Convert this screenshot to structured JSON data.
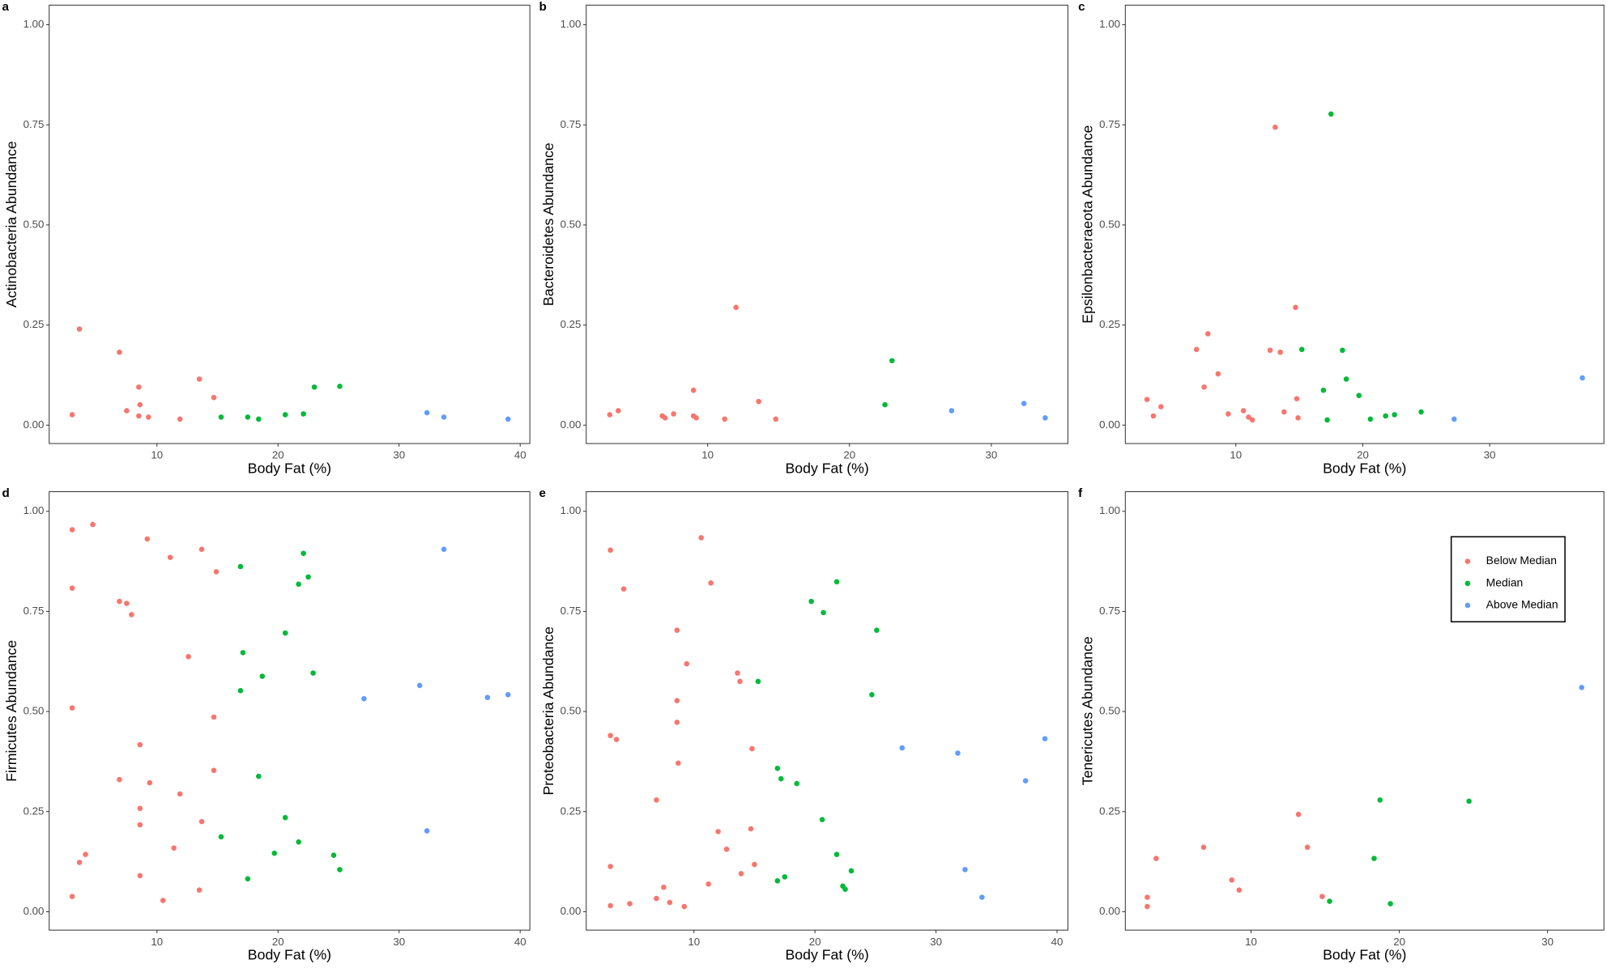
{
  "chart_data": [
    {
      "type": "scatter",
      "panel": "a",
      "xlabel": "Body Fat (%)",
      "ylabel": "Actinobacteria Abundance",
      "xlim": [
        1.1,
        40.8
      ],
      "ylim": [
        -0.046,
        1.049
      ],
      "xticks": [
        10,
        20,
        30,
        40
      ],
      "yticks": [
        {
          "value": 0,
          "label": "0.00"
        },
        {
          "value": 0.25,
          "label": "0.25"
        },
        {
          "value": 0.5,
          "label": "0.50"
        },
        {
          "value": 0.75,
          "label": "0.75"
        },
        {
          "value": 1,
          "label": "1.00"
        }
      ],
      "series": [
        {
          "color": "#F8766D",
          "x": [
            3.0,
            3.6,
            6.9,
            7.5,
            8.5,
            8.6,
            8.5,
            9.3,
            11.9,
            13.5,
            14.7
          ],
          "y": [
            0.026,
            0.24,
            0.182,
            0.036,
            0.095,
            0.051,
            0.023,
            0.02,
            0.015,
            0.115,
            0.069
          ]
        },
        {
          "color": "#00BA38",
          "x": [
            15.3,
            17.5,
            18.4,
            20.6,
            22.1,
            23.0,
            25.1
          ],
          "y": [
            0.02,
            0.02,
            0.015,
            0.026,
            0.028,
            0.095,
            0.097
          ]
        },
        {
          "color": "#619CFF",
          "x": [
            32.3,
            33.7,
            39.0
          ],
          "y": [
            0.031,
            0.02,
            0.015
          ]
        }
      ]
    },
    {
      "type": "scatter",
      "panel": "b",
      "xlabel": "Body Fat (%)",
      "ylabel": "Bacteroidetes Abundance",
      "xlim": [
        1.44,
        35.4
      ],
      "ylim": [
        -0.046,
        1.049
      ],
      "xticks": [
        10,
        20,
        30
      ],
      "yticks": [
        {
          "value": 0,
          "label": "0.00"
        },
        {
          "value": 0.25,
          "label": "0.25"
        },
        {
          "value": 0.5,
          "label": "0.50"
        },
        {
          "value": 0.75,
          "label": "0.75"
        },
        {
          "value": 1,
          "label": "1.00"
        }
      ],
      "series": [
        {
          "color": "#F8766D",
          "x": [
            3.1,
            3.7,
            6.8,
            7.0,
            7.6,
            9.0,
            9.0,
            9.2,
            11.2,
            12.0,
            13.6,
            14.8
          ],
          "y": [
            0.026,
            0.036,
            0.023,
            0.018,
            0.028,
            0.087,
            0.023,
            0.018,
            0.015,
            0.294,
            0.059,
            0.015
          ]
        },
        {
          "color": "#00BA38",
          "x": [
            22.5,
            23.0
          ],
          "y": [
            0.051,
            0.161
          ]
        },
        {
          "color": "#619CFF",
          "x": [
            27.2,
            32.3,
            33.8
          ],
          "y": [
            0.036,
            0.054,
            0.018
          ]
        }
      ]
    },
    {
      "type": "scatter",
      "panel": "c",
      "xlabel": "Body Fat (%)",
      "ylabel": "Epsilonbacteraeota Abundance",
      "xlim": [
        1.29,
        39.0
      ],
      "ylim": [
        -0.046,
        1.049
      ],
      "xticks": [
        10,
        20,
        30
      ],
      "yticks": [
        {
          "value": 0,
          "label": "0.00"
        },
        {
          "value": 0.25,
          "label": "0.25"
        },
        {
          "value": 0.5,
          "label": "0.50"
        },
        {
          "value": 0.75,
          "label": "0.75"
        },
        {
          "value": 1,
          "label": "1.00"
        }
      ],
      "series": [
        {
          "color": "#F8766D",
          "x": [
            3.0,
            3.5,
            4.1,
            6.9,
            7.5,
            7.8,
            8.6,
            9.4,
            10.6,
            11.0,
            11.3,
            12.7,
            13.1,
            13.5,
            13.8,
            14.7,
            14.8,
            14.9
          ],
          "y": [
            0.064,
            0.023,
            0.046,
            0.189,
            0.095,
            0.228,
            0.128,
            0.028,
            0.036,
            0.02,
            0.013,
            0.187,
            0.744,
            0.182,
            0.033,
            0.294,
            0.066,
            0.018
          ]
        },
        {
          "color": "#00BA38",
          "x": [
            15.2,
            16.9,
            17.2,
            17.5,
            18.4,
            18.7,
            19.7,
            20.6,
            21.8,
            22.5,
            24.6
          ],
          "y": [
            0.189,
            0.087,
            0.013,
            0.777,
            0.187,
            0.115,
            0.074,
            0.015,
            0.023,
            0.026,
            0.033
          ]
        },
        {
          "color": "#619CFF",
          "x": [
            27.2,
            37.3
          ],
          "y": [
            0.015,
            0.118
          ]
        }
      ]
    },
    {
      "type": "scatter",
      "panel": "d",
      "xlabel": "Body Fat (%)",
      "ylabel": "Firmicutes Abundance",
      "xlim": [
        1.1,
        40.8
      ],
      "ylim": [
        -0.046,
        1.049
      ],
      "xticks": [
        10,
        20,
        30,
        40
      ],
      "yticks": [
        {
          "value": 0,
          "label": "0.00"
        },
        {
          "value": 0.25,
          "label": "0.25"
        },
        {
          "value": 0.5,
          "label": "0.50"
        },
        {
          "value": 0.75,
          "label": "0.75"
        },
        {
          "value": 1,
          "label": "1.00"
        }
      ],
      "series": [
        {
          "color": "#F8766D",
          "x": [
            3.0,
            3.0,
            3.0,
            3.0,
            3.6,
            4.1,
            4.7,
            6.9,
            6.9,
            7.5,
            7.9,
            8.6,
            8.6,
            8.6,
            8.6,
            9.2,
            9.4,
            10.5,
            11.1,
            11.4,
            11.9,
            12.6,
            13.5,
            13.7,
            13.7,
            14.7,
            14.7,
            14.9
          ],
          "y": [
            0.954,
            0.808,
            0.509,
            0.038,
            0.123,
            0.143,
            0.967,
            0.775,
            0.33,
            0.77,
            0.742,
            0.417,
            0.258,
            0.217,
            0.09,
            0.931,
            0.322,
            0.028,
            0.885,
            0.159,
            0.294,
            0.637,
            0.054,
            0.905,
            0.225,
            0.486,
            0.353,
            0.849
          ]
        },
        {
          "color": "#00BA38",
          "x": [
            15.3,
            16.9,
            17.1,
            16.9,
            17.5,
            18.4,
            18.7,
            19.7,
            20.6,
            20.6,
            21.7,
            21.7,
            22.1,
            22.5,
            22.9,
            24.6,
            25.1
          ],
          "y": [
            0.187,
            0.862,
            0.647,
            0.552,
            0.082,
            0.338,
            0.588,
            0.146,
            0.235,
            0.696,
            0.818,
            0.174,
            0.895,
            0.836,
            0.596,
            0.141,
            0.105
          ]
        },
        {
          "color": "#619CFF",
          "x": [
            27.1,
            31.7,
            32.3,
            33.7,
            37.3,
            39.0
          ],
          "y": [
            0.532,
            0.565,
            0.202,
            0.905,
            0.535,
            0.542
          ]
        }
      ]
    },
    {
      "type": "scatter",
      "panel": "e",
      "xlabel": "Body Fat (%)",
      "ylabel": "Proteobacteria Abundance",
      "xlim": [
        1.1,
        40.9
      ],
      "ylim": [
        -0.046,
        1.049
      ],
      "xticks": [
        10,
        20,
        30,
        40
      ],
      "yticks": [
        {
          "value": 0,
          "label": "0.00"
        },
        {
          "value": 0.25,
          "label": "0.25"
        },
        {
          "value": 0.5,
          "label": "0.50"
        },
        {
          "value": 0.75,
          "label": "0.75"
        },
        {
          "value": 1,
          "label": "1.00"
        }
      ],
      "series": [
        {
          "color": "#F8766D",
          "x": [
            3.1,
            3.1,
            3.1,
            3.1,
            3.6,
            4.2,
            4.7,
            6.9,
            6.9,
            7.5,
            8.0,
            8.6,
            8.6,
            8.6,
            8.7,
            9.2,
            9.4,
            10.6,
            11.2,
            11.4,
            12.0,
            12.7,
            13.6,
            13.8,
            13.9,
            14.7,
            14.8,
            15.0
          ],
          "y": [
            0.903,
            0.44,
            0.113,
            0.015,
            0.43,
            0.806,
            0.02,
            0.279,
            0.033,
            0.061,
            0.023,
            0.703,
            0.527,
            0.473,
            0.371,
            0.013,
            0.619,
            0.934,
            0.069,
            0.821,
            0.2,
            0.156,
            0.596,
            0.575,
            0.095,
            0.207,
            0.407,
            0.118
          ]
        },
        {
          "color": "#00BA38",
          "x": [
            15.3,
            16.9,
            17.2,
            16.9,
            17.5,
            18.5,
            19.7,
            20.7,
            21.8,
            25.1,
            24.7,
            20.6,
            21.8,
            22.3,
            22.5,
            23.0
          ],
          "y": [
            0.575,
            0.358,
            0.332,
            0.077,
            0.087,
            0.32,
            0.775,
            0.747,
            0.824,
            0.703,
            0.542,
            0.23,
            0.143,
            0.064,
            0.056,
            0.102
          ]
        },
        {
          "color": "#619CFF",
          "x": [
            27.2,
            31.8,
            37.4,
            39.0,
            32.4,
            33.8
          ],
          "y": [
            0.409,
            0.396,
            0.327,
            0.432,
            0.105,
            0.036
          ]
        }
      ]
    },
    {
      "type": "scatter",
      "panel": "f",
      "xlabel": "Body Fat (%)",
      "ylabel": "Tenericutes Abundance",
      "xlim": [
        1.52,
        33.8
      ],
      "ylim": [
        -0.046,
        1.049
      ],
      "xticks": [
        10,
        20,
        30
      ],
      "yticks": [
        {
          "value": 0,
          "label": "0.00"
        },
        {
          "value": 0.25,
          "label": "0.25"
        },
        {
          "value": 0.5,
          "label": "0.50"
        },
        {
          "value": 0.75,
          "label": "0.75"
        },
        {
          "value": 1,
          "label": "1.00"
        }
      ],
      "legend": "upper right",
      "series": [
        {
          "name": "Below Median",
          "color": "#F8766D",
          "x": [
            3.0,
            3.0,
            3.6,
            6.8,
            8.7,
            9.2,
            13.2,
            13.8,
            14.8
          ],
          "y": [
            0.036,
            0.013,
            0.133,
            0.161,
            0.079,
            0.054,
            0.243,
            0.161,
            0.038
          ]
        },
        {
          "name": "Median",
          "color": "#00BA38",
          "x": [
            15.3,
            19.4,
            18.3,
            18.7,
            24.7
          ],
          "y": [
            0.026,
            0.02,
            0.133,
            0.279,
            0.276
          ]
        },
        {
          "name": "Above Median",
          "color": "#619CFF",
          "x": [
            32.3
          ],
          "y": [
            0.56
          ]
        }
      ]
    }
  ]
}
